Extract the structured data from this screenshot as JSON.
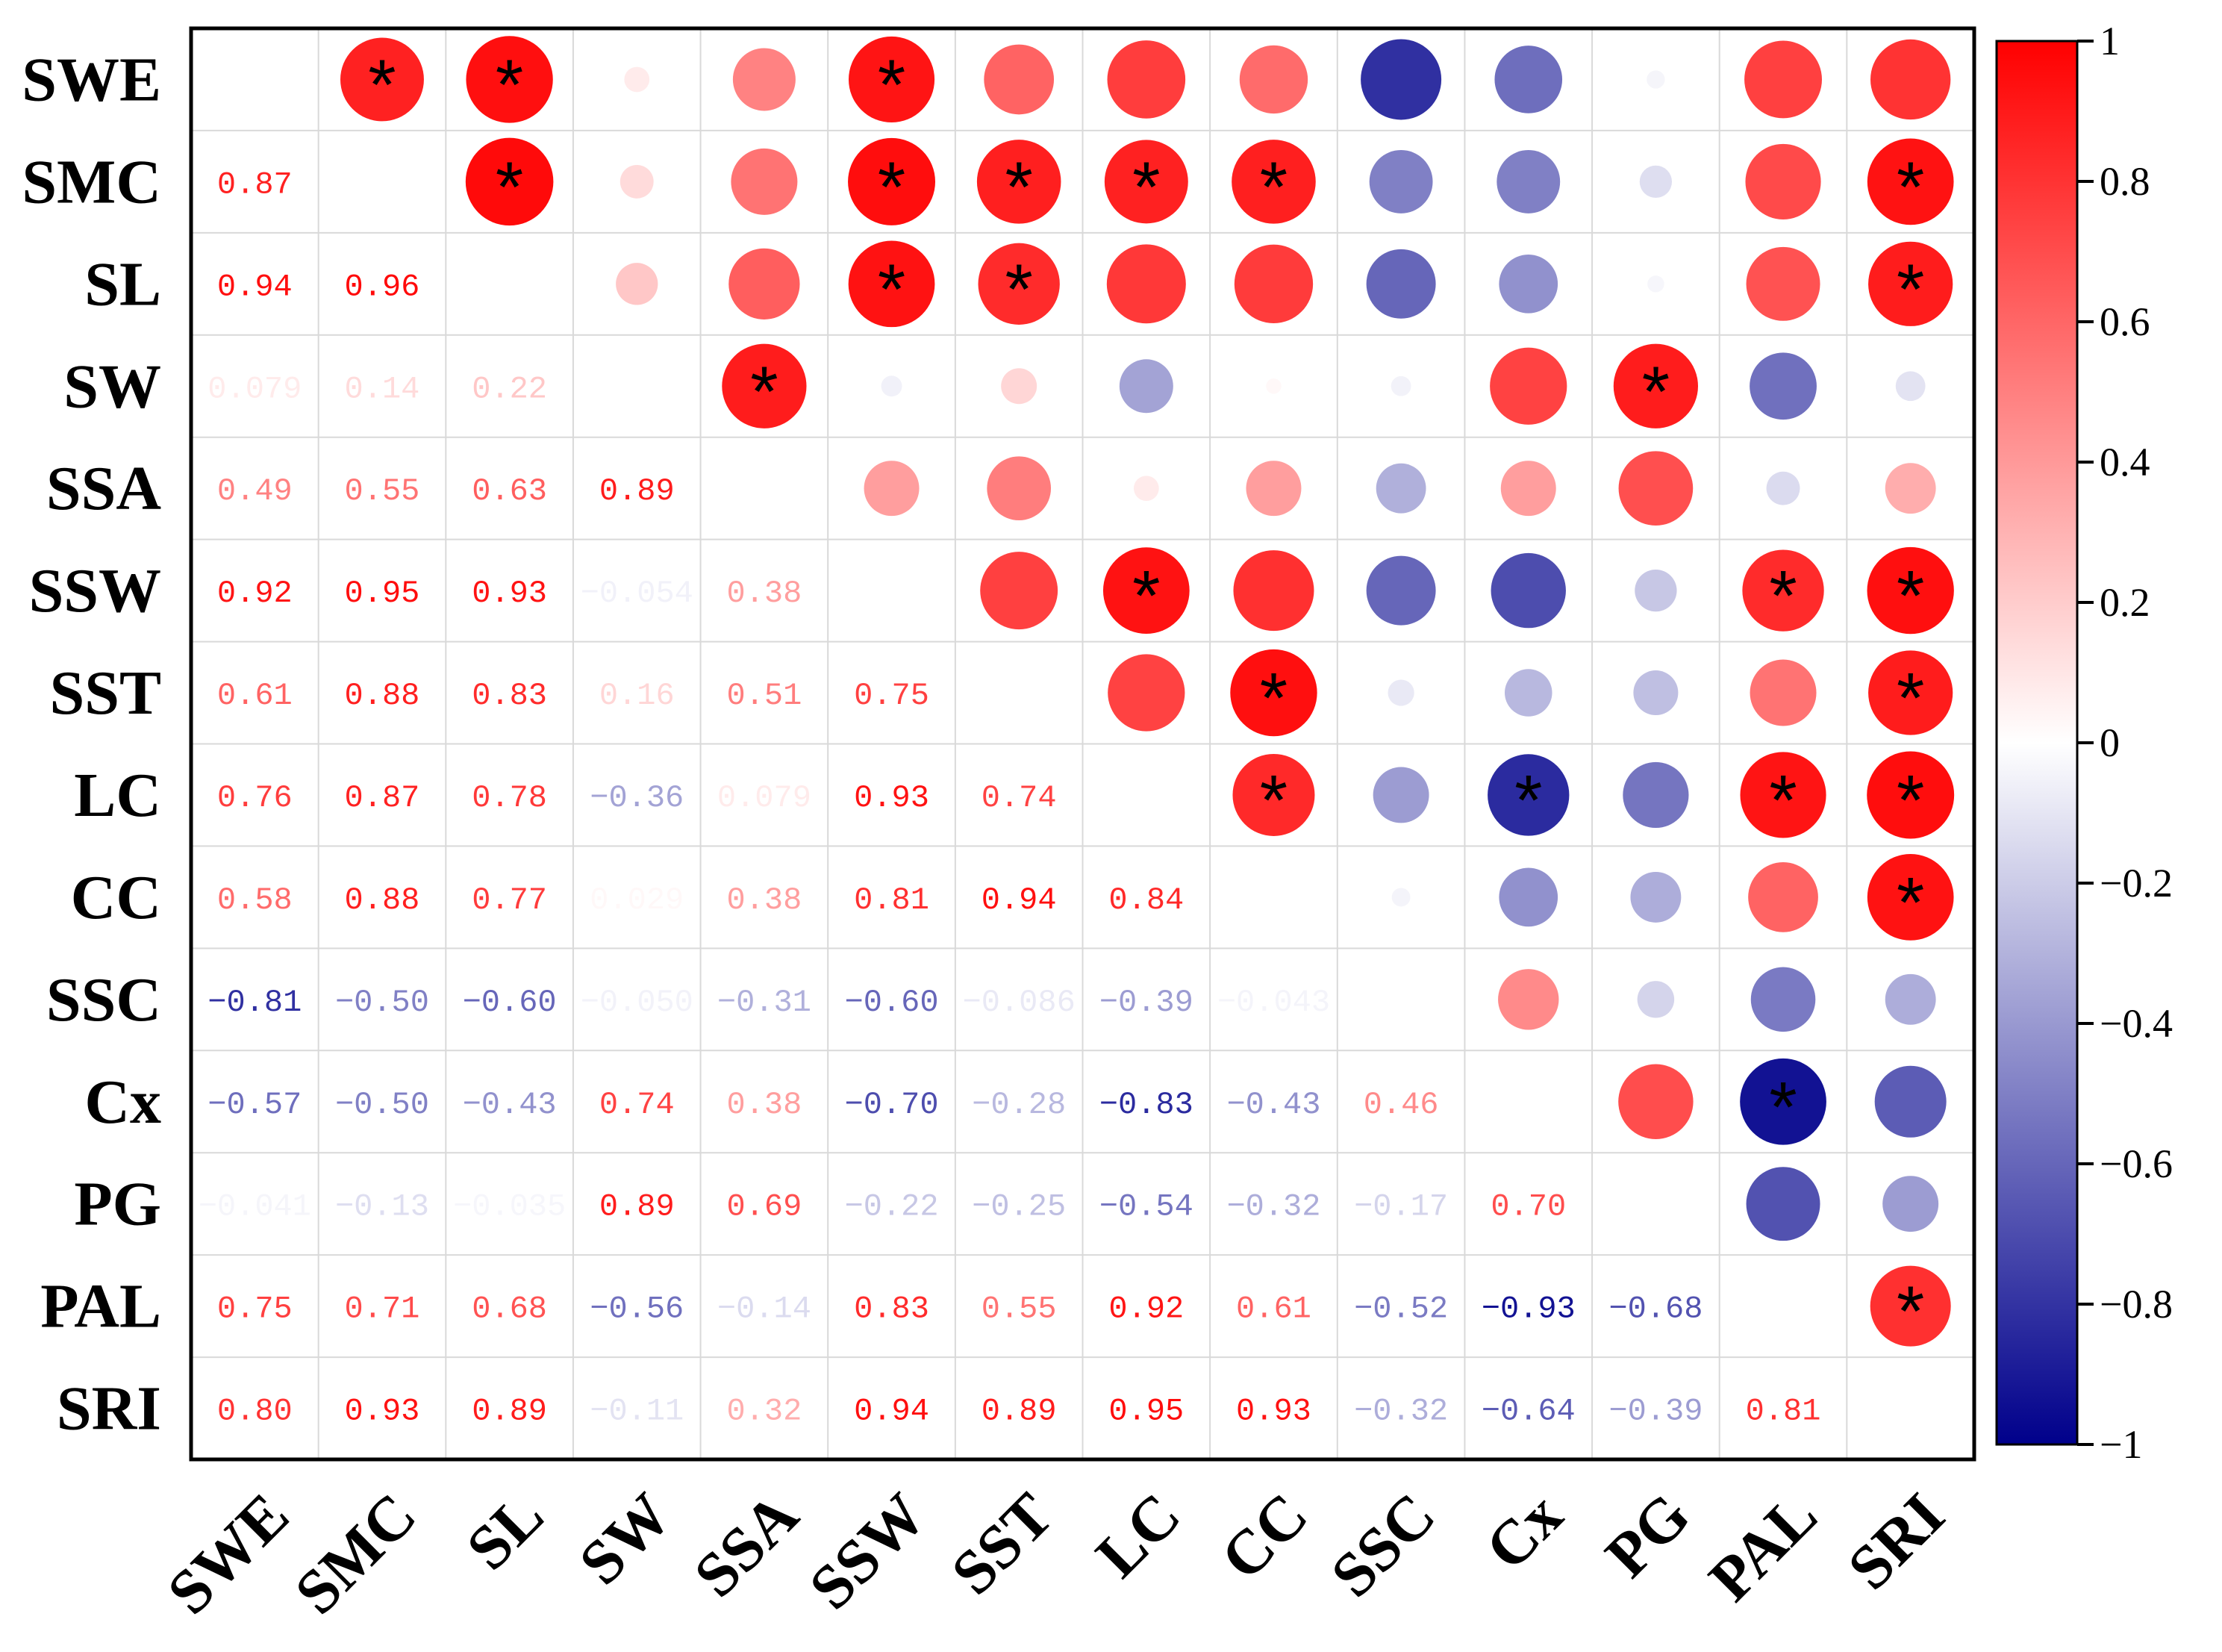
{
  "chart_data": {
    "type": "correlation-matrix",
    "title": "",
    "variables": [
      "SWE",
      "SMC",
      "SL",
      "SW",
      "SSA",
      "SSW",
      "SST",
      "LC",
      "CC",
      "SSC",
      "Cx",
      "PG",
      "PAL",
      "SRI"
    ],
    "lower_display_labels": [
      [],
      [
        "0.87"
      ],
      [
        "0.94",
        "0.96"
      ],
      [
        "0.079",
        "0.14",
        "0.22"
      ],
      [
        "0.49",
        "0.55",
        "0.63",
        "0.89"
      ],
      [
        "0.92",
        "0.95",
        "0.93",
        "-0.054",
        "0.38"
      ],
      [
        "0.61",
        "0.88",
        "0.83",
        "0.16",
        "0.51",
        "0.75"
      ],
      [
        "0.76",
        "0.87",
        "0.78",
        "-0.36",
        "0.079",
        "0.93",
        "0.74"
      ],
      [
        "0.58",
        "0.88",
        "0.77",
        "0.029",
        "0.38",
        "0.81",
        "0.94",
        "0.84"
      ],
      [
        "-0.81",
        "-0.50",
        "-0.60",
        "-0.050",
        "-0.31",
        "-0.60",
        "-0.086",
        "-0.39",
        "-0.043"
      ],
      [
        "-0.57",
        "-0.50",
        "-0.43",
        "0.74",
        "0.38",
        "-0.70",
        "-0.28",
        "-0.83",
        "-0.43",
        "0.46"
      ],
      [
        "-0.041",
        "-0.13",
        "-0.035",
        "0.89",
        "0.69",
        "-0.22",
        "-0.25",
        "-0.54",
        "-0.32",
        "-0.17",
        "0.70"
      ],
      [
        "0.75",
        "0.71",
        "0.68",
        "-0.56",
        "-0.14",
        "0.83",
        "0.55",
        "0.92",
        "0.61",
        "-0.52",
        "-0.93",
        "-0.68"
      ],
      [
        "0.80",
        "0.93",
        "0.89",
        "-0.11",
        "0.32",
        "0.94",
        "0.89",
        "0.95",
        "0.93",
        "-0.32",
        "-0.64",
        "-0.39",
        "0.81"
      ]
    ],
    "upper_circles": [
      {
        "row": 0,
        "col": 1,
        "value": 0.87,
        "significant": true
      },
      {
        "row": 0,
        "col": 2,
        "value": 0.94,
        "significant": true
      },
      {
        "row": 0,
        "col": 3,
        "value": 0.079,
        "significant": false
      },
      {
        "row": 0,
        "col": 4,
        "value": 0.49,
        "significant": false
      },
      {
        "row": 0,
        "col": 5,
        "value": 0.92,
        "significant": true
      },
      {
        "row": 0,
        "col": 6,
        "value": 0.61,
        "significant": false
      },
      {
        "row": 0,
        "col": 7,
        "value": 0.76,
        "significant": false
      },
      {
        "row": 0,
        "col": 8,
        "value": 0.58,
        "significant": false
      },
      {
        "row": 0,
        "col": 9,
        "value": -0.81,
        "significant": false
      },
      {
        "row": 0,
        "col": 10,
        "value": -0.57,
        "significant": false
      },
      {
        "row": 0,
        "col": 11,
        "value": -0.041,
        "significant": false
      },
      {
        "row": 0,
        "col": 12,
        "value": 0.75,
        "significant": false
      },
      {
        "row": 0,
        "col": 13,
        "value": 0.8,
        "significant": false
      },
      {
        "row": 1,
        "col": 2,
        "value": 0.96,
        "significant": true
      },
      {
        "row": 1,
        "col": 3,
        "value": 0.14,
        "significant": false
      },
      {
        "row": 1,
        "col": 4,
        "value": 0.55,
        "significant": false
      },
      {
        "row": 1,
        "col": 5,
        "value": 0.95,
        "significant": true
      },
      {
        "row": 1,
        "col": 6,
        "value": 0.88,
        "significant": true
      },
      {
        "row": 1,
        "col": 7,
        "value": 0.87,
        "significant": true
      },
      {
        "row": 1,
        "col": 8,
        "value": 0.88,
        "significant": true
      },
      {
        "row": 1,
        "col": 9,
        "value": -0.5,
        "significant": false
      },
      {
        "row": 1,
        "col": 10,
        "value": -0.5,
        "significant": false
      },
      {
        "row": 1,
        "col": 11,
        "value": -0.13,
        "significant": false
      },
      {
        "row": 1,
        "col": 12,
        "value": 0.71,
        "significant": false
      },
      {
        "row": 1,
        "col": 13,
        "value": 0.93,
        "significant": true
      },
      {
        "row": 2,
        "col": 3,
        "value": 0.22,
        "significant": false
      },
      {
        "row": 2,
        "col": 4,
        "value": 0.63,
        "significant": false
      },
      {
        "row": 2,
        "col": 5,
        "value": 0.93,
        "significant": true
      },
      {
        "row": 2,
        "col": 6,
        "value": 0.83,
        "significant": true
      },
      {
        "row": 2,
        "col": 7,
        "value": 0.78,
        "significant": false
      },
      {
        "row": 2,
        "col": 8,
        "value": 0.77,
        "significant": false
      },
      {
        "row": 2,
        "col": 9,
        "value": -0.6,
        "significant": false
      },
      {
        "row": 2,
        "col": 10,
        "value": -0.43,
        "significant": false
      },
      {
        "row": 2,
        "col": 11,
        "value": -0.035,
        "significant": false
      },
      {
        "row": 2,
        "col": 12,
        "value": 0.68,
        "significant": false
      },
      {
        "row": 2,
        "col": 13,
        "value": 0.89,
        "significant": true
      },
      {
        "row": 3,
        "col": 4,
        "value": 0.89,
        "significant": true
      },
      {
        "row": 3,
        "col": 5,
        "value": -0.054,
        "significant": false
      },
      {
        "row": 3,
        "col": 6,
        "value": 0.16,
        "significant": false
      },
      {
        "row": 3,
        "col": 7,
        "value": -0.36,
        "significant": false
      },
      {
        "row": 3,
        "col": 8,
        "value": 0.029,
        "significant": false
      },
      {
        "row": 3,
        "col": 9,
        "value": -0.05,
        "significant": false
      },
      {
        "row": 3,
        "col": 10,
        "value": 0.74,
        "significant": false
      },
      {
        "row": 3,
        "col": 11,
        "value": 0.89,
        "significant": true
      },
      {
        "row": 3,
        "col": 12,
        "value": -0.56,
        "significant": false
      },
      {
        "row": 3,
        "col": 13,
        "value": -0.11,
        "significant": false
      },
      {
        "row": 4,
        "col": 5,
        "value": 0.38,
        "significant": false
      },
      {
        "row": 4,
        "col": 6,
        "value": 0.51,
        "significant": false
      },
      {
        "row": 4,
        "col": 7,
        "value": 0.079,
        "significant": false
      },
      {
        "row": 4,
        "col": 8,
        "value": 0.38,
        "significant": false
      },
      {
        "row": 4,
        "col": 9,
        "value": -0.31,
        "significant": false
      },
      {
        "row": 4,
        "col": 10,
        "value": 0.38,
        "significant": false
      },
      {
        "row": 4,
        "col": 11,
        "value": 0.69,
        "significant": false
      },
      {
        "row": 4,
        "col": 12,
        "value": -0.14,
        "significant": false
      },
      {
        "row": 4,
        "col": 13,
        "value": 0.32,
        "significant": false
      },
      {
        "row": 5,
        "col": 6,
        "value": 0.75,
        "significant": false
      },
      {
        "row": 5,
        "col": 7,
        "value": 0.93,
        "significant": true
      },
      {
        "row": 5,
        "col": 8,
        "value": 0.81,
        "significant": false
      },
      {
        "row": 5,
        "col": 9,
        "value": -0.6,
        "significant": false
      },
      {
        "row": 5,
        "col": 10,
        "value": -0.7,
        "significant": false
      },
      {
        "row": 5,
        "col": 11,
        "value": -0.22,
        "significant": false
      },
      {
        "row": 5,
        "col": 12,
        "value": 0.83,
        "significant": true
      },
      {
        "row": 5,
        "col": 13,
        "value": 0.94,
        "significant": true
      },
      {
        "row": 6,
        "col": 7,
        "value": 0.74,
        "significant": false
      },
      {
        "row": 6,
        "col": 8,
        "value": 0.94,
        "significant": true
      },
      {
        "row": 6,
        "col": 9,
        "value": -0.086,
        "significant": false
      },
      {
        "row": 6,
        "col": 10,
        "value": -0.28,
        "significant": false
      },
      {
        "row": 6,
        "col": 11,
        "value": -0.25,
        "significant": false
      },
      {
        "row": 6,
        "col": 12,
        "value": 0.55,
        "significant": false
      },
      {
        "row": 6,
        "col": 13,
        "value": 0.89,
        "significant": true
      },
      {
        "row": 7,
        "col": 8,
        "value": 0.84,
        "significant": true
      },
      {
        "row": 7,
        "col": 9,
        "value": -0.39,
        "significant": false
      },
      {
        "row": 7,
        "col": 10,
        "value": -0.83,
        "significant": true
      },
      {
        "row": 7,
        "col": 11,
        "value": -0.54,
        "significant": false
      },
      {
        "row": 7,
        "col": 12,
        "value": 0.92,
        "significant": true
      },
      {
        "row": 7,
        "col": 13,
        "value": 0.95,
        "significant": true
      },
      {
        "row": 8,
        "col": 9,
        "value": -0.043,
        "significant": false
      },
      {
        "row": 8,
        "col": 10,
        "value": -0.43,
        "significant": false
      },
      {
        "row": 8,
        "col": 11,
        "value": -0.32,
        "significant": false
      },
      {
        "row": 8,
        "col": 12,
        "value": 0.61,
        "significant": false
      },
      {
        "row": 8,
        "col": 13,
        "value": 0.93,
        "significant": true
      },
      {
        "row": 9,
        "col": 10,
        "value": 0.46,
        "significant": false
      },
      {
        "row": 9,
        "col": 11,
        "value": -0.17,
        "significant": false
      },
      {
        "row": 9,
        "col": 12,
        "value": -0.52,
        "significant": false
      },
      {
        "row": 9,
        "col": 13,
        "value": -0.32,
        "significant": false
      },
      {
        "row": 10,
        "col": 11,
        "value": 0.7,
        "significant": false
      },
      {
        "row": 10,
        "col": 12,
        "value": -0.93,
        "significant": true
      },
      {
        "row": 10,
        "col": 13,
        "value": -0.64,
        "significant": false
      },
      {
        "row": 11,
        "col": 12,
        "value": -0.68,
        "significant": false
      },
      {
        "row": 11,
        "col": 13,
        "value": -0.39,
        "significant": false
      },
      {
        "row": 12,
        "col": 13,
        "value": 0.81,
        "significant": true
      }
    ],
    "significance_marker": "*",
    "colorbar": {
      "range": [
        -1,
        1
      ],
      "ticks": [
        1,
        0.8,
        0.6,
        0.4,
        0.2,
        0,
        -0.2,
        -0.4,
        -0.6,
        -0.8,
        -1
      ],
      "tick_labels": [
        "1",
        "0.8",
        "0.6",
        "0.4",
        "0.2",
        "0",
        "−0.2",
        "−0.4",
        "−0.6",
        "−0.8",
        "−1"
      ],
      "colors": {
        "positive": "#ff0000",
        "zero": "#ffffff",
        "negative": "#00008b"
      },
      "position": "right"
    }
  }
}
